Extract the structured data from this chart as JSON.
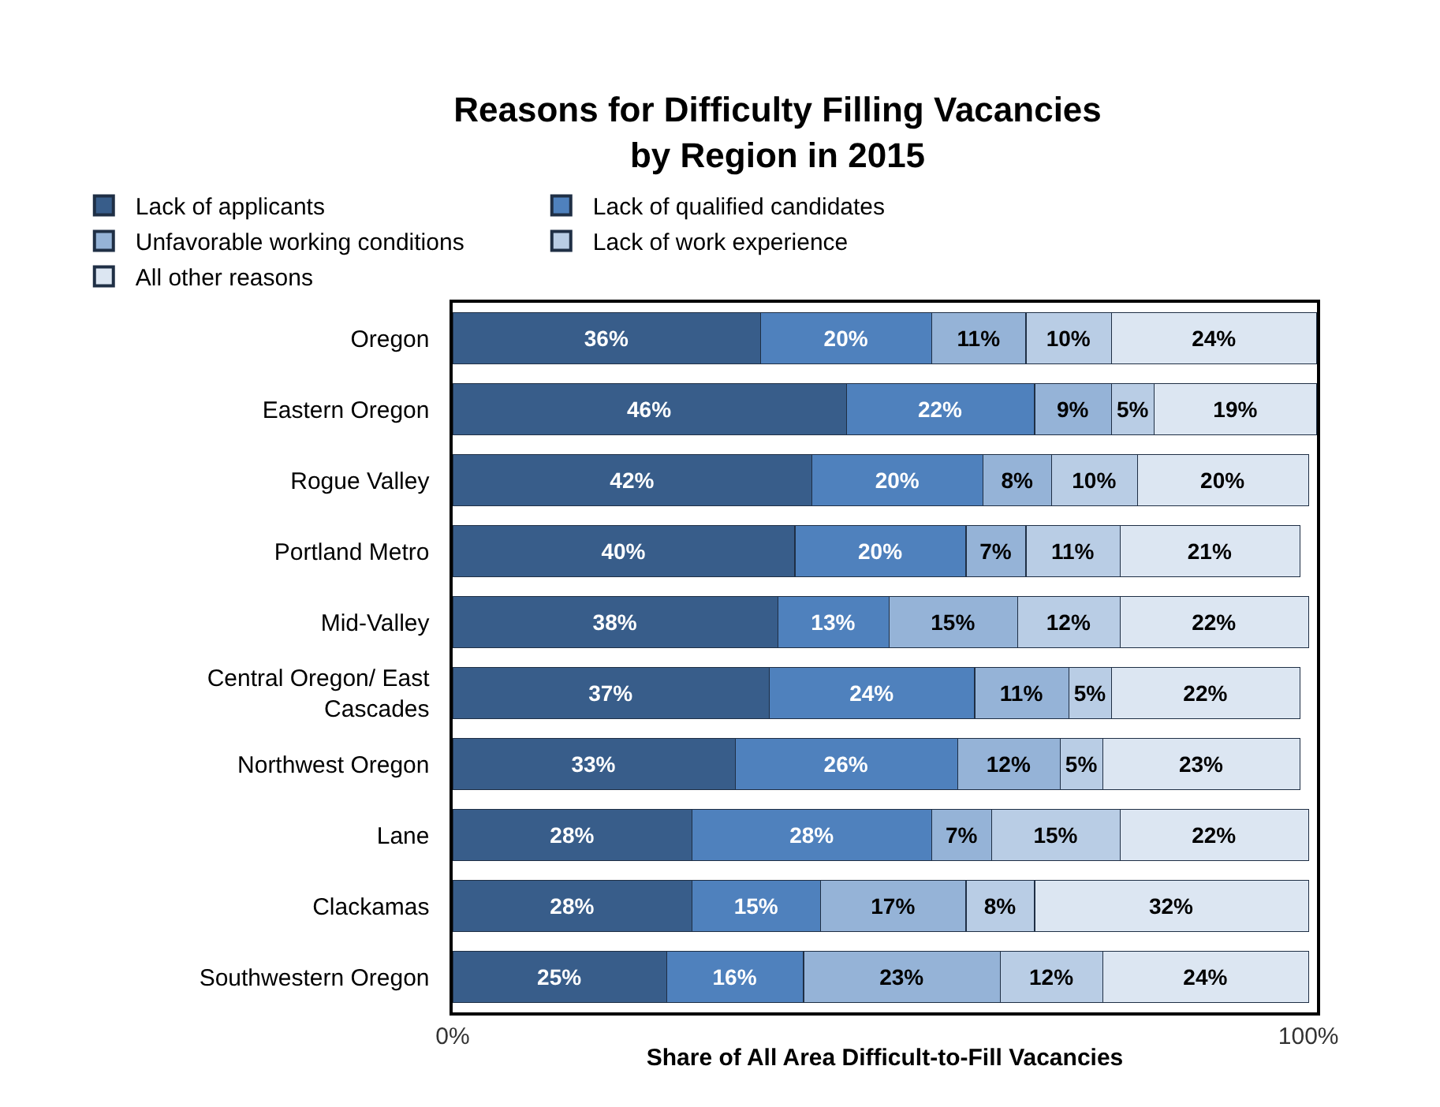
{
  "chart_data": {
    "type": "bar",
    "orientation": "horizontal",
    "stacked": true,
    "title": "Reasons for Difficulty Filling Vacancies\nby Region in 2015",
    "xlabel": "Share of All Area Difficult-to-Fill Vacancies",
    "categories": [
      "Oregon",
      "Eastern Oregon",
      "Rogue Valley",
      "Portland Metro",
      "Mid-Valley",
      "Central Oregon/ East Cascades",
      "Northwest Oregon",
      "Lane",
      "Clackamas",
      "Southwestern Oregon"
    ],
    "xlim": [
      0,
      101
    ],
    "xticks": [
      {
        "value": 0,
        "label": "0%"
      },
      {
        "value": 100,
        "label": "100%"
      }
    ],
    "legend": "top",
    "series": [
      {
        "name": "Lack of applicants",
        "color": "#385d8a",
        "values": [
          36,
          46,
          42,
          40,
          38,
          37,
          33,
          28,
          28,
          25
        ],
        "value_labels": [
          "36%",
          "46%",
          "42%",
          "40%",
          "38%",
          "37%",
          "33%",
          "28%",
          "28%",
          "25%"
        ]
      },
      {
        "name": "Lack of qualified candidates",
        "color": "#4f81bd",
        "values": [
          20,
          22,
          20,
          20,
          13,
          24,
          26,
          28,
          15,
          16
        ],
        "value_labels": [
          "20%",
          "22%",
          "20%",
          "20%",
          "13%",
          "24%",
          "26%",
          "28%",
          "15%",
          "16%"
        ]
      },
      {
        "name": "Unfavorable working conditions",
        "color": "#95b3d7",
        "values": [
          11,
          9,
          8,
          7,
          15,
          11,
          12,
          7,
          17,
          23
        ],
        "value_labels": [
          "11%",
          "9%",
          "8%",
          "7%",
          "15%",
          "11%",
          "12%",
          "7%",
          "17%",
          "23%"
        ]
      },
      {
        "name": "Lack of work experience",
        "color": "#b9cde5",
        "values": [
          10,
          5,
          10,
          11,
          12,
          5,
          5,
          15,
          8,
          12
        ],
        "value_labels": [
          "10%",
          "5%",
          "10%",
          "11%",
          "12%",
          "5%",
          "5%",
          "15%",
          "8%",
          "12%"
        ]
      },
      {
        "name": "All other reasons",
        "color": "#dce6f2",
        "values": [
          24,
          19,
          20,
          21,
          22,
          22,
          23,
          22,
          32,
          24
        ],
        "value_labels": [
          "24%",
          "19%",
          "20%",
          "21%",
          "22%",
          "22%",
          "23%",
          "22%",
          "32%",
          "24%"
        ]
      }
    ]
  }
}
